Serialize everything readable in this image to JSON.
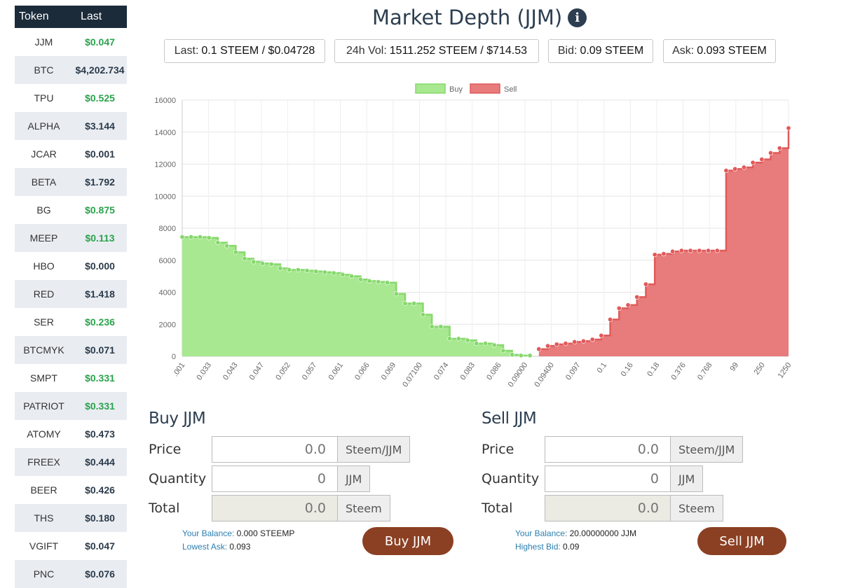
{
  "sidebar": {
    "headers": [
      "Token",
      "Last"
    ],
    "rows": [
      {
        "symbol": "JJM",
        "last": "$0.047",
        "color": "green"
      },
      {
        "symbol": "BTC",
        "last": "$4,202.734",
        "color": "dark"
      },
      {
        "symbol": "TPU",
        "last": "$0.525",
        "color": "green"
      },
      {
        "symbol": "ALPHA",
        "last": "$3.144",
        "color": "dark"
      },
      {
        "symbol": "JCAR",
        "last": "$0.001",
        "color": "dark"
      },
      {
        "symbol": "BETA",
        "last": "$1.792",
        "color": "dark"
      },
      {
        "symbol": "BG",
        "last": "$0.875",
        "color": "green"
      },
      {
        "symbol": "MEEP",
        "last": "$0.113",
        "color": "green"
      },
      {
        "symbol": "HBO",
        "last": "$0.000",
        "color": "dark"
      },
      {
        "symbol": "RED",
        "last": "$1.418",
        "color": "dark"
      },
      {
        "symbol": "SER",
        "last": "$0.236",
        "color": "green"
      },
      {
        "symbol": "BTCMYK",
        "last": "$0.071",
        "color": "dark"
      },
      {
        "symbol": "SMPT",
        "last": "$0.331",
        "color": "green"
      },
      {
        "symbol": "PATRIOT",
        "last": "$0.331",
        "color": "green"
      },
      {
        "symbol": "ATOMY",
        "last": "$0.473",
        "color": "dark"
      },
      {
        "symbol": "FREEX",
        "last": "$0.444",
        "color": "dark"
      },
      {
        "symbol": "BEER",
        "last": "$0.426",
        "color": "dark"
      },
      {
        "symbol": "THS",
        "last": "$0.180",
        "color": "dark"
      },
      {
        "symbol": "VGIFT",
        "last": "$0.047",
        "color": "dark"
      },
      {
        "symbol": "PNC",
        "last": "$0.076",
        "color": "dark"
      }
    ]
  },
  "header": {
    "title": "Market Depth (JJM)",
    "info_icon": "info-icon"
  },
  "stats": {
    "last_label": "Last:",
    "last_value": "0.1 STEEM / $0.04728",
    "vol_label": "24h Vol:",
    "vol_value": "1511.252 STEEM / $714.53",
    "bid_label": "Bid:",
    "bid_value": "0.09 STEEM",
    "ask_label": "Ask:",
    "ask_value": "0.093 STEEM"
  },
  "colors": {
    "buy_fill": "#a8e890",
    "buy_line": "#86d86c",
    "sell_fill": "#e87b7b",
    "sell_line": "#e05a5a",
    "button": "#8b4023"
  },
  "chart_data": {
    "type": "area",
    "legend": [
      "Buy",
      "Sell"
    ],
    "legend_position": "top",
    "ylim": [
      0,
      16000
    ],
    "yticks": [
      0,
      2000,
      4000,
      6000,
      8000,
      10000,
      12000,
      14000,
      16000
    ],
    "xtick_labels": [
      ".001",
      "0.033",
      "0.043",
      "0.047",
      "0.052",
      "0.057",
      "0.061",
      "0.066",
      "0.069",
      "0.07100",
      "0.074",
      "0.083",
      "0.086",
      "0.09000",
      "0.09400",
      "0.097",
      "0.1",
      "0.16",
      "0.18",
      "0.376",
      "0.768",
      "99",
      "250",
      "1250"
    ],
    "grid": true,
    "series": [
      {
        "name": "Buy",
        "values": [
          7450,
          7450,
          7450,
          7400,
          7100,
          6900,
          6500,
          6100,
          5900,
          5800,
          5750,
          5500,
          5400,
          5400,
          5350,
          5300,
          5250,
          5200,
          5100,
          5000,
          4800,
          4700,
          4650,
          4600,
          3900,
          3300,
          3300,
          2600,
          1850,
          1850,
          1100,
          1100,
          1000,
          800,
          800,
          700,
          350,
          100,
          50,
          50
        ]
      },
      {
        "name": "Sell",
        "values": [
          450,
          650,
          750,
          800,
          900,
          950,
          1050,
          1300,
          2300,
          3000,
          3200,
          3700,
          4500,
          6350,
          6400,
          6550,
          6600,
          6600,
          6600,
          6600,
          6600,
          11600,
          11700,
          11800,
          12100,
          12300,
          12700,
          13000,
          14250
        ]
      }
    ]
  },
  "buy_form": {
    "title": "Buy JJM",
    "price_label": "Price",
    "price_value": "0.0",
    "price_unit": "Steem/JJM",
    "qty_label": "Quantity",
    "qty_value": "0",
    "qty_unit": "JJM",
    "total_label": "Total",
    "total_value": "0.0",
    "total_unit": "Steem",
    "balance_label": "Your Balance:",
    "balance_value": "0.000 STEEMP",
    "ref_label": "Lowest Ask:",
    "ref_value": "0.093",
    "button": "Buy JJM"
  },
  "sell_form": {
    "title": "Sell JJM",
    "price_label": "Price",
    "price_value": "0.0",
    "price_unit": "Steem/JJM",
    "qty_label": "Quantity",
    "qty_value": "0",
    "qty_unit": "JJM",
    "total_label": "Total",
    "total_value": "0.0",
    "total_unit": "Steem",
    "balance_label": "Your Balance:",
    "balance_value": "20.00000000 JJM",
    "ref_label": "Highest Bid:",
    "ref_value": "0.09",
    "button": "Sell JJM"
  }
}
